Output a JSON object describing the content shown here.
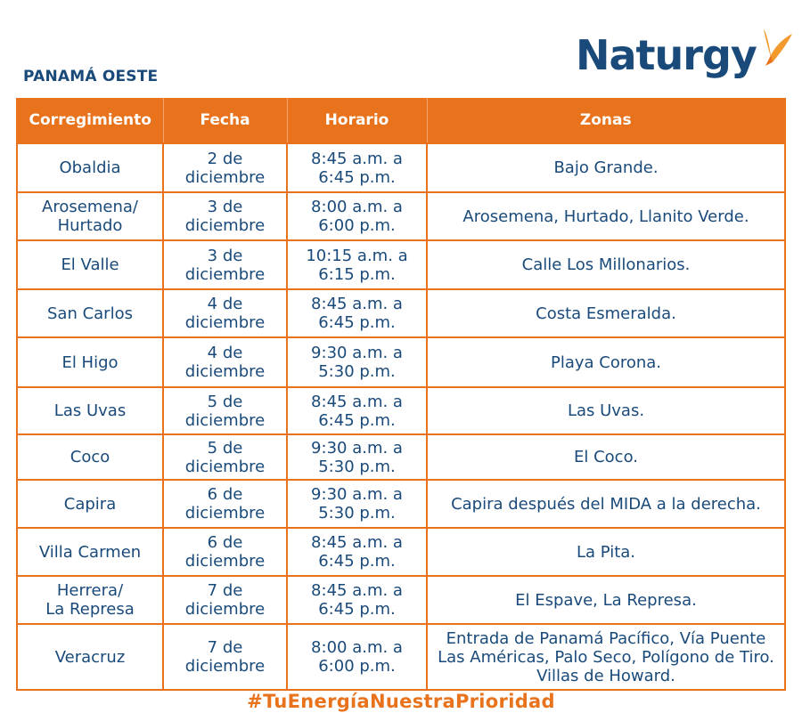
{
  "region_title": "PANAMÁ OESTE",
  "brand": {
    "name": "Naturgy",
    "text_color": "#1a4a7a",
    "butterfly_color": "#f39a2e",
    "logo_icon": "butterfly-icon"
  },
  "colors": {
    "accent": "#e8731c",
    "text": "#1a4a7a"
  },
  "table": {
    "headers": [
      "Corregimiento",
      "Fecha",
      "Horario",
      "Zonas"
    ],
    "rows": [
      {
        "corregimiento": [
          "Obaldia"
        ],
        "fecha": [
          "2 de",
          "diciembre"
        ],
        "horario": [
          "8:45 a.m. a",
          "6:45 p.m."
        ],
        "zonas": [
          "Bajo Grande."
        ]
      },
      {
        "corregimiento": [
          "Arosemena/",
          "Hurtado"
        ],
        "fecha": [
          "3 de",
          "diciembre"
        ],
        "horario": [
          "8:00 a.m. a",
          "6:00 p.m."
        ],
        "zonas": [
          "Arosemena, Hurtado, Llanito Verde."
        ]
      },
      {
        "corregimiento": [
          "El Valle"
        ],
        "fecha": [
          "3 de",
          "diciembre"
        ],
        "horario": [
          "10:15 a.m. a",
          "6:15 p.m."
        ],
        "zonas": [
          "Calle Los Millonarios."
        ]
      },
      {
        "corregimiento": [
          "San Carlos"
        ],
        "fecha": [
          "4 de",
          "diciembre"
        ],
        "horario": [
          "8:45 a.m. a",
          "6:45 p.m."
        ],
        "zonas": [
          "Costa Esmeralda."
        ]
      },
      {
        "corregimiento": [
          "El Higo"
        ],
        "fecha": [
          "4 de",
          "diciembre"
        ],
        "horario": [
          "9:30 a.m. a",
          "5:30 p.m."
        ],
        "zonas": [
          "Playa Corona."
        ]
      },
      {
        "corregimiento": [
          "Las Uvas"
        ],
        "fecha": [
          "5 de",
          "diciembre"
        ],
        "horario": [
          "8:45 a.m. a",
          "6:45 p.m."
        ],
        "zonas": [
          "Las Uvas."
        ]
      },
      {
        "corregimiento": [
          "Coco"
        ],
        "fecha": [
          "5 de",
          "diciembre"
        ],
        "horario": [
          "9:30 a.m. a",
          "5:30 p.m."
        ],
        "zonas": [
          "El Coco."
        ]
      },
      {
        "corregimiento": [
          "Capira"
        ],
        "fecha": [
          "6 de",
          "diciembre"
        ],
        "horario": [
          "9:30 a.m. a",
          "5:30 p.m."
        ],
        "zonas": [
          "Capira después del MIDA a la derecha."
        ]
      },
      {
        "corregimiento": [
          "Villa Carmen"
        ],
        "fecha": [
          "6 de",
          "diciembre"
        ],
        "horario": [
          "8:45 a.m. a",
          "6:45 p.m."
        ],
        "zonas": [
          "La Pita."
        ]
      },
      {
        "corregimiento": [
          "Herrera/",
          "La Represa"
        ],
        "fecha": [
          "7 de",
          "diciembre"
        ],
        "horario": [
          "8:45 a.m. a",
          "6:45 p.m."
        ],
        "zonas": [
          "El Espave, La Represa."
        ]
      },
      {
        "corregimiento": [
          "Veracruz"
        ],
        "fecha": [
          "7 de",
          "diciembre"
        ],
        "horario": [
          "8:00 a.m. a",
          "6:00 p.m."
        ],
        "zonas": [
          "Entrada de Panamá Pacífico, Vía Puente",
          "Las Américas, Palo Seco, Polígono de Tiro.",
          "Villas de Howard."
        ]
      }
    ]
  },
  "hashtag": "#TuEnergíaNuestraPrioridad"
}
